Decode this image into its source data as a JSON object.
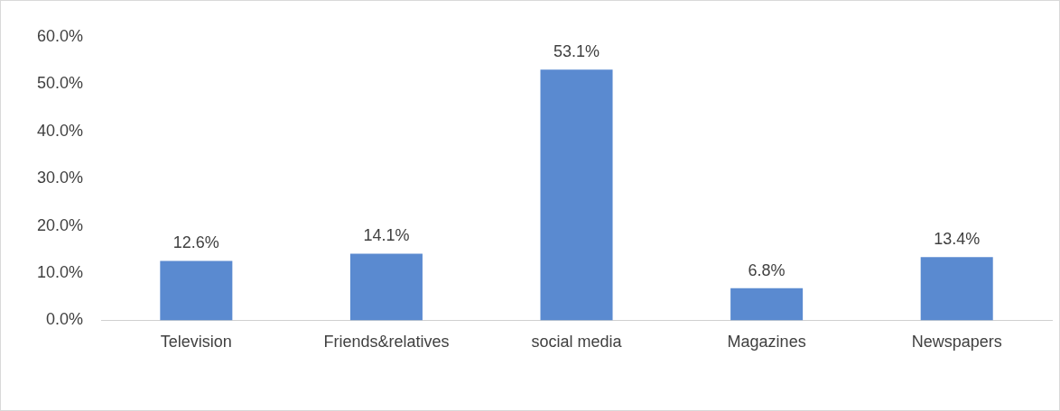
{
  "chart_data": {
    "type": "bar",
    "categories": [
      "Television",
      "Friends&relatives",
      "social media",
      "Magazines",
      "Newspapers"
    ],
    "values": [
      12.6,
      14.1,
      53.1,
      6.8,
      13.4
    ],
    "color": "#5a8ad0",
    "value_labels": [
      "12.6%",
      "14.1%",
      "53.1%",
      "6.8%",
      "13.4%"
    ],
    "ylim": [
      0,
      60
    ],
    "yticks": [
      {
        "value": 0,
        "label": "0.0%"
      },
      {
        "value": 10,
        "label": "10.0%"
      },
      {
        "value": 20,
        "label": "20.0%"
      },
      {
        "value": 30,
        "label": "30.0%"
      },
      {
        "value": 40,
        "label": "40.0%"
      },
      {
        "value": 50,
        "label": "50.0%"
      },
      {
        "value": 60,
        "label": "60.0%"
      }
    ],
    "grid": false,
    "legend": false
  }
}
